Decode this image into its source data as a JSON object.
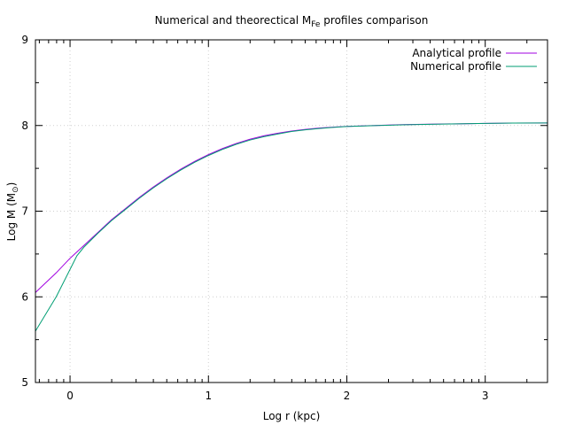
{
  "chart_data": {
    "type": "line",
    "title_main": "Numerical and theorectical M",
    "title_sub": "Fe",
    "title_end": " profiles comparison",
    "xlabel": "Log r (kpc)",
    "ylabel_main": "Log M (M",
    "ylabel_sub": "⊙",
    "ylabel_end": ")",
    "xlim": [
      -0.25,
      3.45
    ],
    "ylim": [
      5,
      9
    ],
    "xticks": [
      0,
      1,
      2,
      3
    ],
    "yticks": [
      5,
      6,
      7,
      8,
      9
    ],
    "grid": true,
    "legend_position": "top-right",
    "series": [
      {
        "name": "Analytical profile",
        "color": "#a000e0",
        "x": [
          -0.25,
          -0.1,
          0.0,
          0.1,
          0.2,
          0.3,
          0.4,
          0.5,
          0.6,
          0.7,
          0.8,
          0.9,
          1.0,
          1.1,
          1.2,
          1.3,
          1.4,
          1.5,
          1.6,
          1.7,
          1.8,
          1.9,
          2.0,
          2.2,
          2.4,
          2.6,
          2.8,
          3.0,
          3.2,
          3.45
        ],
        "y": [
          6.05,
          6.28,
          6.45,
          6.6,
          6.75,
          6.9,
          7.03,
          7.16,
          7.28,
          7.39,
          7.49,
          7.58,
          7.66,
          7.73,
          7.79,
          7.84,
          7.88,
          7.91,
          7.935,
          7.955,
          7.97,
          7.98,
          7.99,
          8.0,
          8.01,
          8.015,
          8.02,
          8.025,
          8.028,
          8.03
        ]
      },
      {
        "name": "Numerical profile",
        "color": "#009e73",
        "x": [
          -0.25,
          -0.1,
          0.05,
          0.1,
          0.2,
          0.3,
          0.4,
          0.5,
          0.6,
          0.7,
          0.8,
          0.9,
          1.0,
          1.1,
          1.2,
          1.3,
          1.4,
          1.5,
          1.6,
          1.7,
          1.8,
          1.9,
          2.0,
          2.2,
          2.4,
          2.6,
          2.8,
          3.0,
          3.2,
          3.45
        ],
        "y": [
          5.6,
          6.0,
          6.48,
          6.58,
          6.74,
          6.89,
          7.02,
          7.15,
          7.27,
          7.38,
          7.48,
          7.57,
          7.65,
          7.72,
          7.78,
          7.83,
          7.87,
          7.9,
          7.93,
          7.95,
          7.965,
          7.978,
          7.988,
          7.999,
          8.008,
          8.014,
          8.02,
          8.025,
          8.028,
          8.03
        ]
      }
    ]
  }
}
